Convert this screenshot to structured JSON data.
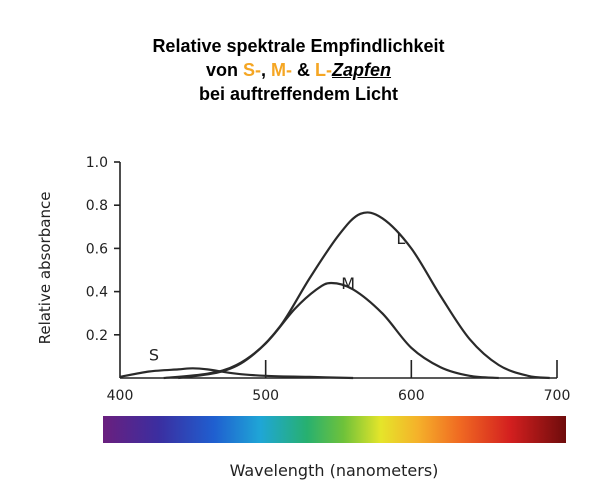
{
  "header": {
    "line1": "Relative spektrale Empfindlichkeit",
    "line2_prefix": "von ",
    "s": "S-",
    "sep1": ", ",
    "m": "M-",
    "sep2": " & ",
    "l": "L-",
    "zapfen": "Zapfen",
    "line3": "bei auftreffendem Licht"
  },
  "colors": {
    "highlight": "#f5a623"
  },
  "chart_data": {
    "type": "line",
    "ylabel": "Relative absorbance",
    "xlabel": "Wavelength (nanometers)",
    "xlim": [
      400,
      700
    ],
    "ylim": [
      0,
      1.0
    ],
    "x_ticks": [
      "400",
      "500",
      "600",
      "700"
    ],
    "y_ticks": [
      "0.2",
      "0.4",
      "0.6",
      "0.8",
      "1.0"
    ],
    "series": [
      {
        "name": "S",
        "x": [
          400,
          420,
          440,
          450,
          460,
          480,
          500,
          530,
          560
        ],
        "values": [
          0.005,
          0.03,
          0.04,
          0.045,
          0.04,
          0.02,
          0.01,
          0.005,
          0.0
        ]
      },
      {
        "name": "M",
        "x": [
          430,
          460,
          480,
          500,
          520,
          535,
          545,
          560,
          580,
          600,
          620,
          640,
          660
        ],
        "values": [
          0.0,
          0.02,
          0.06,
          0.16,
          0.32,
          0.41,
          0.44,
          0.41,
          0.3,
          0.14,
          0.05,
          0.01,
          0.0
        ]
      },
      {
        "name": "L",
        "x": [
          440,
          470,
          490,
          510,
          530,
          550,
          565,
          580,
          600,
          620,
          640,
          660,
          680,
          695
        ],
        "values": [
          0.0,
          0.03,
          0.1,
          0.24,
          0.46,
          0.66,
          0.76,
          0.74,
          0.6,
          0.38,
          0.18,
          0.06,
          0.01,
          0.0
        ]
      }
    ],
    "color_bar": {
      "label": "visible spectrum 400–700 nm"
    }
  }
}
